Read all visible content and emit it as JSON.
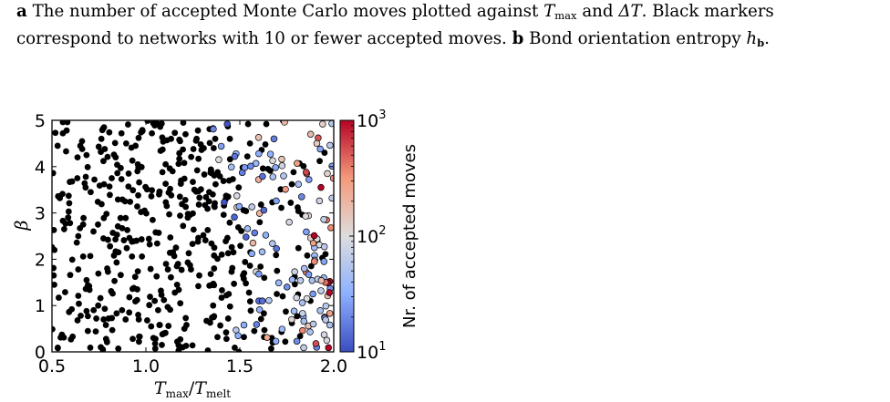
{
  "caption": {
    "a_label": "a",
    "a_text_1": "The number of accepted Monte Carlo moves plotted against",
    "a_tmax": "T",
    "a_tmax_sub": "max",
    "a_and": "and",
    "a_delta": "ΔT",
    "a_text_2": ". Black markers",
    "a_text_3": "correspond to networks with 10 or fewer accepted moves.",
    "b_label": "b",
    "b_text": "Bond orientation entropy",
    "b_h": "h",
    "b_h_sub": "b",
    "b_end": "."
  },
  "colors": {
    "below_threshold": "#000000",
    "colormap_low": "#3b4cc0",
    "colormap_mid": "#dddddd",
    "colormap_high": "#b40426"
  },
  "chart_data": {
    "type": "scatter",
    "xlabel": "T_max/T_melt",
    "xlabel_main": "T",
    "xlabel_sub1": "max",
    "xlabel_slash": "/",
    "xlabel_sub2": "melt",
    "ylabel": "β",
    "xlim": [
      0.5,
      2.0
    ],
    "ylim": [
      0,
      5
    ],
    "x_ticks": [
      "0.5",
      "1.0",
      "1.5",
      "2.0"
    ],
    "y_ticks": [
      "0",
      "1",
      "2",
      "3",
      "4",
      "5"
    ],
    "grid": false,
    "colorbar": {
      "label": "Nr. of accepted moves",
      "scale": "log",
      "range": [
        10,
        1000
      ],
      "ticks": [
        {
          "base": "10",
          "exp": "1",
          "value": 10
        },
        {
          "base": "10",
          "exp": "2",
          "value": 100
        },
        {
          "base": "10",
          "exp": "3",
          "value": 1000
        }
      ],
      "colormap": "coolwarm"
    },
    "note": "Points with 10 or fewer accepted moves shown in black",
    "black_points": [],
    "colored_points": []
  }
}
